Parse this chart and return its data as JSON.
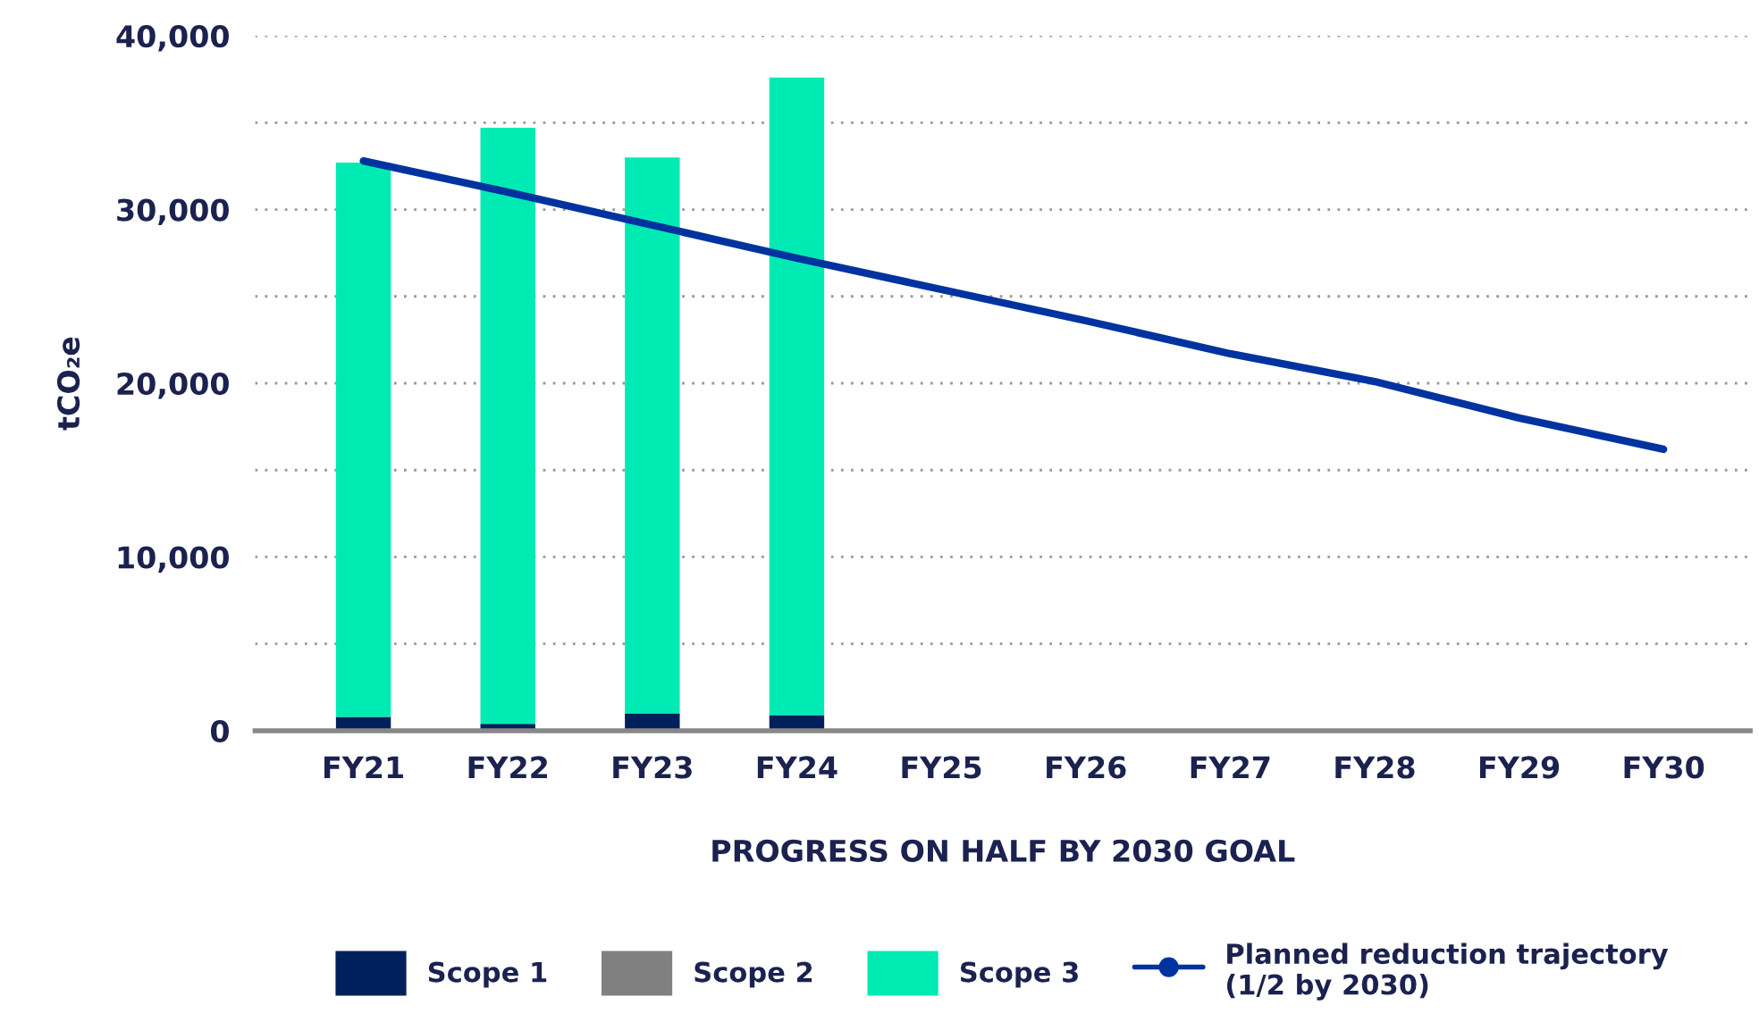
{
  "chart_data": {
    "type": "bar",
    "stacked": true,
    "xlabel": "PROGRESS ON HALF BY 2030 GOAL",
    "ylabel": "tCO₂e",
    "categories": [
      "FY21",
      "FY22",
      "FY23",
      "FY24",
      "FY25",
      "FY26",
      "FY27",
      "FY28",
      "FY29",
      "FY30"
    ],
    "series": [
      {
        "name": "Scope 1",
        "color": "#00205b",
        "values": [
          800,
          400,
          1000,
          900,
          null,
          null,
          null,
          null,
          null,
          null
        ]
      },
      {
        "name": "Scope 2",
        "color": "#808080",
        "values": [
          null,
          null,
          null,
          null,
          null,
          null,
          null,
          null,
          null,
          null
        ]
      },
      {
        "name": "Scope 3",
        "color": "#00ebb4",
        "values": [
          31900,
          34300,
          32000,
          36700,
          null,
          null,
          null,
          null,
          null,
          null
        ]
      },
      {
        "name": "Planned reduction trajectory\n(1/2 by 2030)",
        "type": "line",
        "color": "#0033a0",
        "values": [
          32800,
          31000,
          29100,
          27200,
          25400,
          23600,
          21700,
          20100,
          18000,
          16200
        ]
      }
    ],
    "ylim": [
      0,
      40000
    ],
    "yticks": [
      0,
      {
        "value": 5000,
        "label": null
      },
      {
        "value": 10000,
        "label": "10,000"
      },
      {
        "value": 15000,
        "label": null
      },
      {
        "value": 20000,
        "label": "20,000"
      },
      {
        "value": 25000,
        "label": null
      },
      {
        "value": 30000,
        "label": "30,000"
      },
      {
        "value": 35000,
        "label": null
      },
      {
        "value": 40000,
        "label": "40,000"
      }
    ],
    "grid": "y",
    "legend": "bottom",
    "line_style": "solid",
    "marker": "none"
  }
}
